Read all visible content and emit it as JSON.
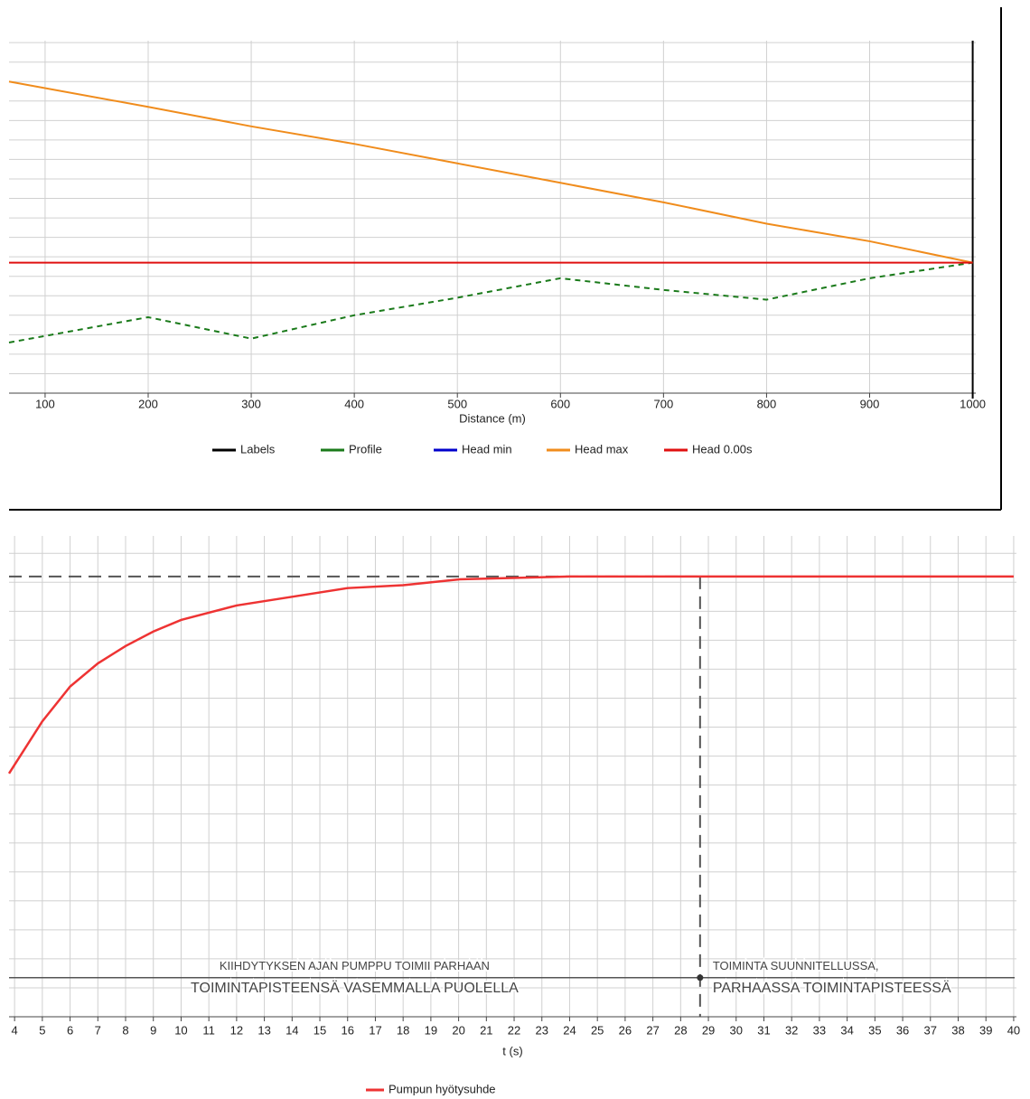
{
  "chart_data": [
    {
      "type": "line",
      "xlabel": "Distance (m)",
      "x": [
        65,
        200,
        300,
        400,
        500,
        600,
        700,
        800,
        900,
        1000
      ],
      "series": [
        {
          "name": "Labels",
          "color": "#000000",
          "x_at": 1000
        },
        {
          "name": "Profile",
          "color": "#1a7a1a",
          "dash": true,
          "values": [
            2.6,
            3.9,
            2.8,
            4.0,
            4.9,
            5.9,
            5.3,
            4.8,
            5.9,
            6.7
          ]
        },
        {
          "name": "Head min",
          "color": "#0000cc",
          "values": [
            null,
            null,
            null,
            null,
            null,
            null,
            null,
            null,
            null,
            null
          ]
        },
        {
          "name": "Head max",
          "color": "#f08c1c",
          "values": [
            16.0,
            14.7,
            13.7,
            12.8,
            11.8,
            10.8,
            9.8,
            8.7,
            7.8,
            6.7
          ]
        },
        {
          "name": "Head 0.00s",
          "color": "#e01010",
          "values": [
            6.7,
            6.7,
            6.7,
            6.7,
            6.7,
            6.7,
            6.7,
            6.7,
            6.7,
            6.7
          ]
        }
      ],
      "xlim": [
        65,
        1003
      ],
      "xticks": [
        100,
        200,
        300,
        400,
        500,
        600,
        700,
        800,
        900,
        1000
      ],
      "ylim": [
        0,
        18.1
      ],
      "yticks": [
        1,
        2,
        3,
        4,
        5,
        6,
        7,
        8,
        9,
        10,
        11,
        12,
        13,
        14,
        15,
        16,
        17,
        18
      ],
      "ytick_labels": false,
      "grid": true
    },
    {
      "type": "line",
      "xlabel": "t (s)",
      "x": [
        3.8,
        5,
        6,
        7,
        8,
        9,
        10,
        12,
        14,
        16,
        18,
        20,
        24,
        28.7,
        40
      ],
      "series": [
        {
          "name": "Pumpun hyötysuhde",
          "color": "#ee3333",
          "values": [
            8.4,
            10.2,
            11.4,
            12.2,
            12.8,
            13.3,
            13.7,
            14.2,
            14.5,
            14.8,
            14.9,
            15.1,
            15.2,
            15.2,
            15.2
          ]
        }
      ],
      "xlim": [
        3.8,
        40.1
      ],
      "xticks": [
        4,
        5,
        6,
        7,
        8,
        9,
        10,
        11,
        12,
        13,
        14,
        15,
        16,
        17,
        18,
        19,
        20,
        21,
        22,
        23,
        24,
        25,
        26,
        27,
        28,
        29,
        30,
        31,
        32,
        33,
        34,
        35,
        36,
        37,
        38,
        39,
        40
      ],
      "ylim": [
        0,
        16.6
      ],
      "yticks": [
        1,
        2,
        3,
        4,
        5,
        6,
        7,
        8,
        9,
        10,
        11,
        12,
        13,
        14,
        15,
        16
      ],
      "ytick_labels": false,
      "grid": true,
      "reference": {
        "x": 28.7,
        "y": 15.2,
        "arrow_y": 1.35
      },
      "annotations": [
        {
          "lines": [
            "KIIHDYTYKSEN AJAN PUMPPU TOIMII PARHAAN",
            "TOIMINTAPISTEENSÄ VASEMMALLA PUOLELLA"
          ]
        },
        {
          "lines": [
            "TOIMINTA SUUNNITELLUSSA,",
            "PARHAASSA TOIMINTAPISTEESSÄ"
          ]
        }
      ]
    }
  ]
}
